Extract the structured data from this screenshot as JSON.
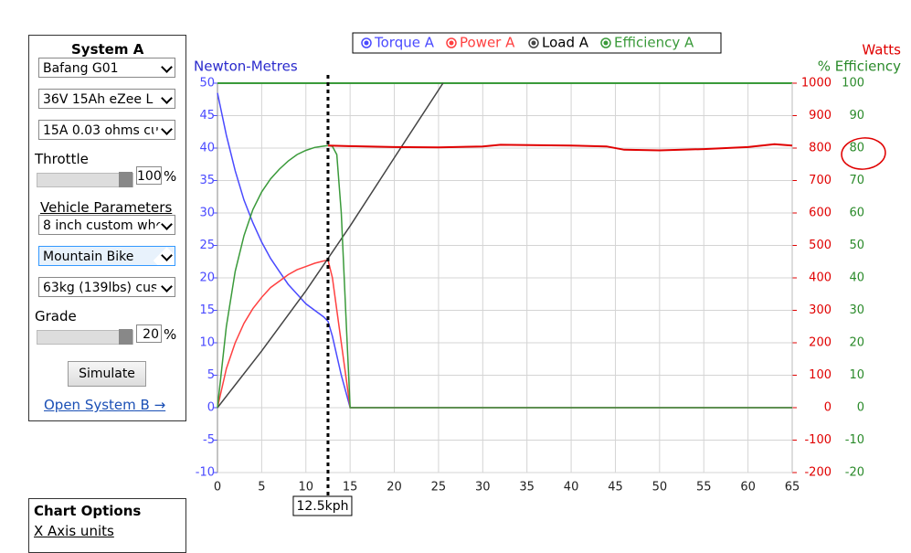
{
  "sidebar": {
    "title": "System A",
    "motor": "Bafang G01",
    "battery": "36V 15Ah eZee L",
    "controller": "15A 0.03 ohms cu",
    "throttle_label": "Throttle",
    "throttle_value": "100",
    "throttle_unit": "%",
    "vehicle_label": "Vehicle Parameters",
    "wheel": "8 inch custom whe",
    "bike": "Mountain Bike",
    "rider": "63kg (139lbs) cus",
    "grade_label": "Grade",
    "grade_value": "20",
    "grade_unit": "%",
    "button": "Simulate",
    "link": "Open System B →"
  },
  "options": {
    "title": "Chart Options",
    "x_axis_label": "X Axis units"
  },
  "chart": {
    "type": "line",
    "legend": [
      "Torque A",
      "Power A",
      "Load A",
      "Efficiency A"
    ],
    "y_title": "Newton-Metres",
    "y2_title": "Watts",
    "y3_title": "% Efficiency",
    "xlim": [
      0,
      65
    ],
    "xticks": [
      0,
      5,
      10,
      15,
      20,
      25,
      30,
      35,
      40,
      45,
      50,
      55,
      60,
      65
    ],
    "ylim": [
      -10,
      50
    ],
    "yticks": [
      -10,
      -5,
      0,
      5,
      10,
      15,
      20,
      25,
      30,
      35,
      40,
      45,
      50
    ],
    "y2lim": [
      -200,
      1000
    ],
    "y2ticks": [
      -200,
      -100,
      0,
      100,
      200,
      300,
      400,
      500,
      600,
      700,
      800,
      900,
      1000
    ],
    "y3lim": [
      -20,
      100
    ],
    "y3ticks": [
      -20,
      -10,
      0,
      10,
      20,
      30,
      40,
      50,
      60,
      70,
      80,
      90,
      100
    ],
    "grid": true,
    "series": [
      {
        "name": "Torque A",
        "color": "#4a4aff",
        "axis": "y",
        "x": [
          0,
          1,
          2,
          3,
          4,
          5,
          6,
          7,
          8,
          9,
          10,
          11,
          12,
          12.5,
          13,
          14,
          15,
          65
        ],
        "values": [
          48.5,
          42,
          36.5,
          32,
          28.5,
          25.5,
          23,
          21,
          19,
          17.5,
          16,
          15,
          14,
          13.3,
          11,
          5,
          0,
          0
        ]
      },
      {
        "name": "Power A",
        "color": "#ff4040",
        "axis": "y2",
        "x": [
          0,
          1,
          2,
          3,
          4,
          5,
          6,
          7,
          8,
          9,
          10,
          11,
          12,
          12.5,
          13,
          14,
          15,
          65
        ],
        "values": [
          0,
          120,
          200,
          260,
          305,
          340,
          370,
          390,
          410,
          425,
          435,
          445,
          452,
          455,
          400,
          200,
          0,
          0
        ]
      },
      {
        "name": "Load A",
        "color": "#444444",
        "axis": "y2",
        "x": [
          0,
          5,
          10,
          15,
          20,
          25.5
        ],
        "values": [
          0,
          175,
          360,
          560,
          770,
          1000
        ]
      },
      {
        "name": "Efficiency A",
        "color": "#3a9a3a",
        "axis": "y3",
        "x": [
          0,
          1,
          2,
          3,
          4,
          5,
          6,
          7,
          8,
          9,
          10,
          11,
          12,
          12.5,
          13,
          13.5,
          14,
          14.5,
          15,
          65
        ],
        "values": [
          0,
          25,
          42,
          53,
          61,
          66.5,
          70.5,
          73.5,
          76,
          78,
          79.3,
          80.2,
          80.6,
          80.8,
          80.5,
          78,
          60,
          30,
          0,
          0
        ]
      }
    ],
    "annotation_line": {
      "color": "#e00000",
      "axis": "y2",
      "x": [
        12.5,
        15,
        20,
        25,
        30,
        32,
        40,
        44,
        46,
        50,
        55,
        60,
        63,
        65
      ],
      "values": [
        808,
        806,
        803,
        802,
        805,
        810,
        808,
        805,
        795,
        793,
        797,
        803,
        812,
        808
      ]
    },
    "cursor": {
      "value": 12.5,
      "label": "12.5kph"
    }
  }
}
